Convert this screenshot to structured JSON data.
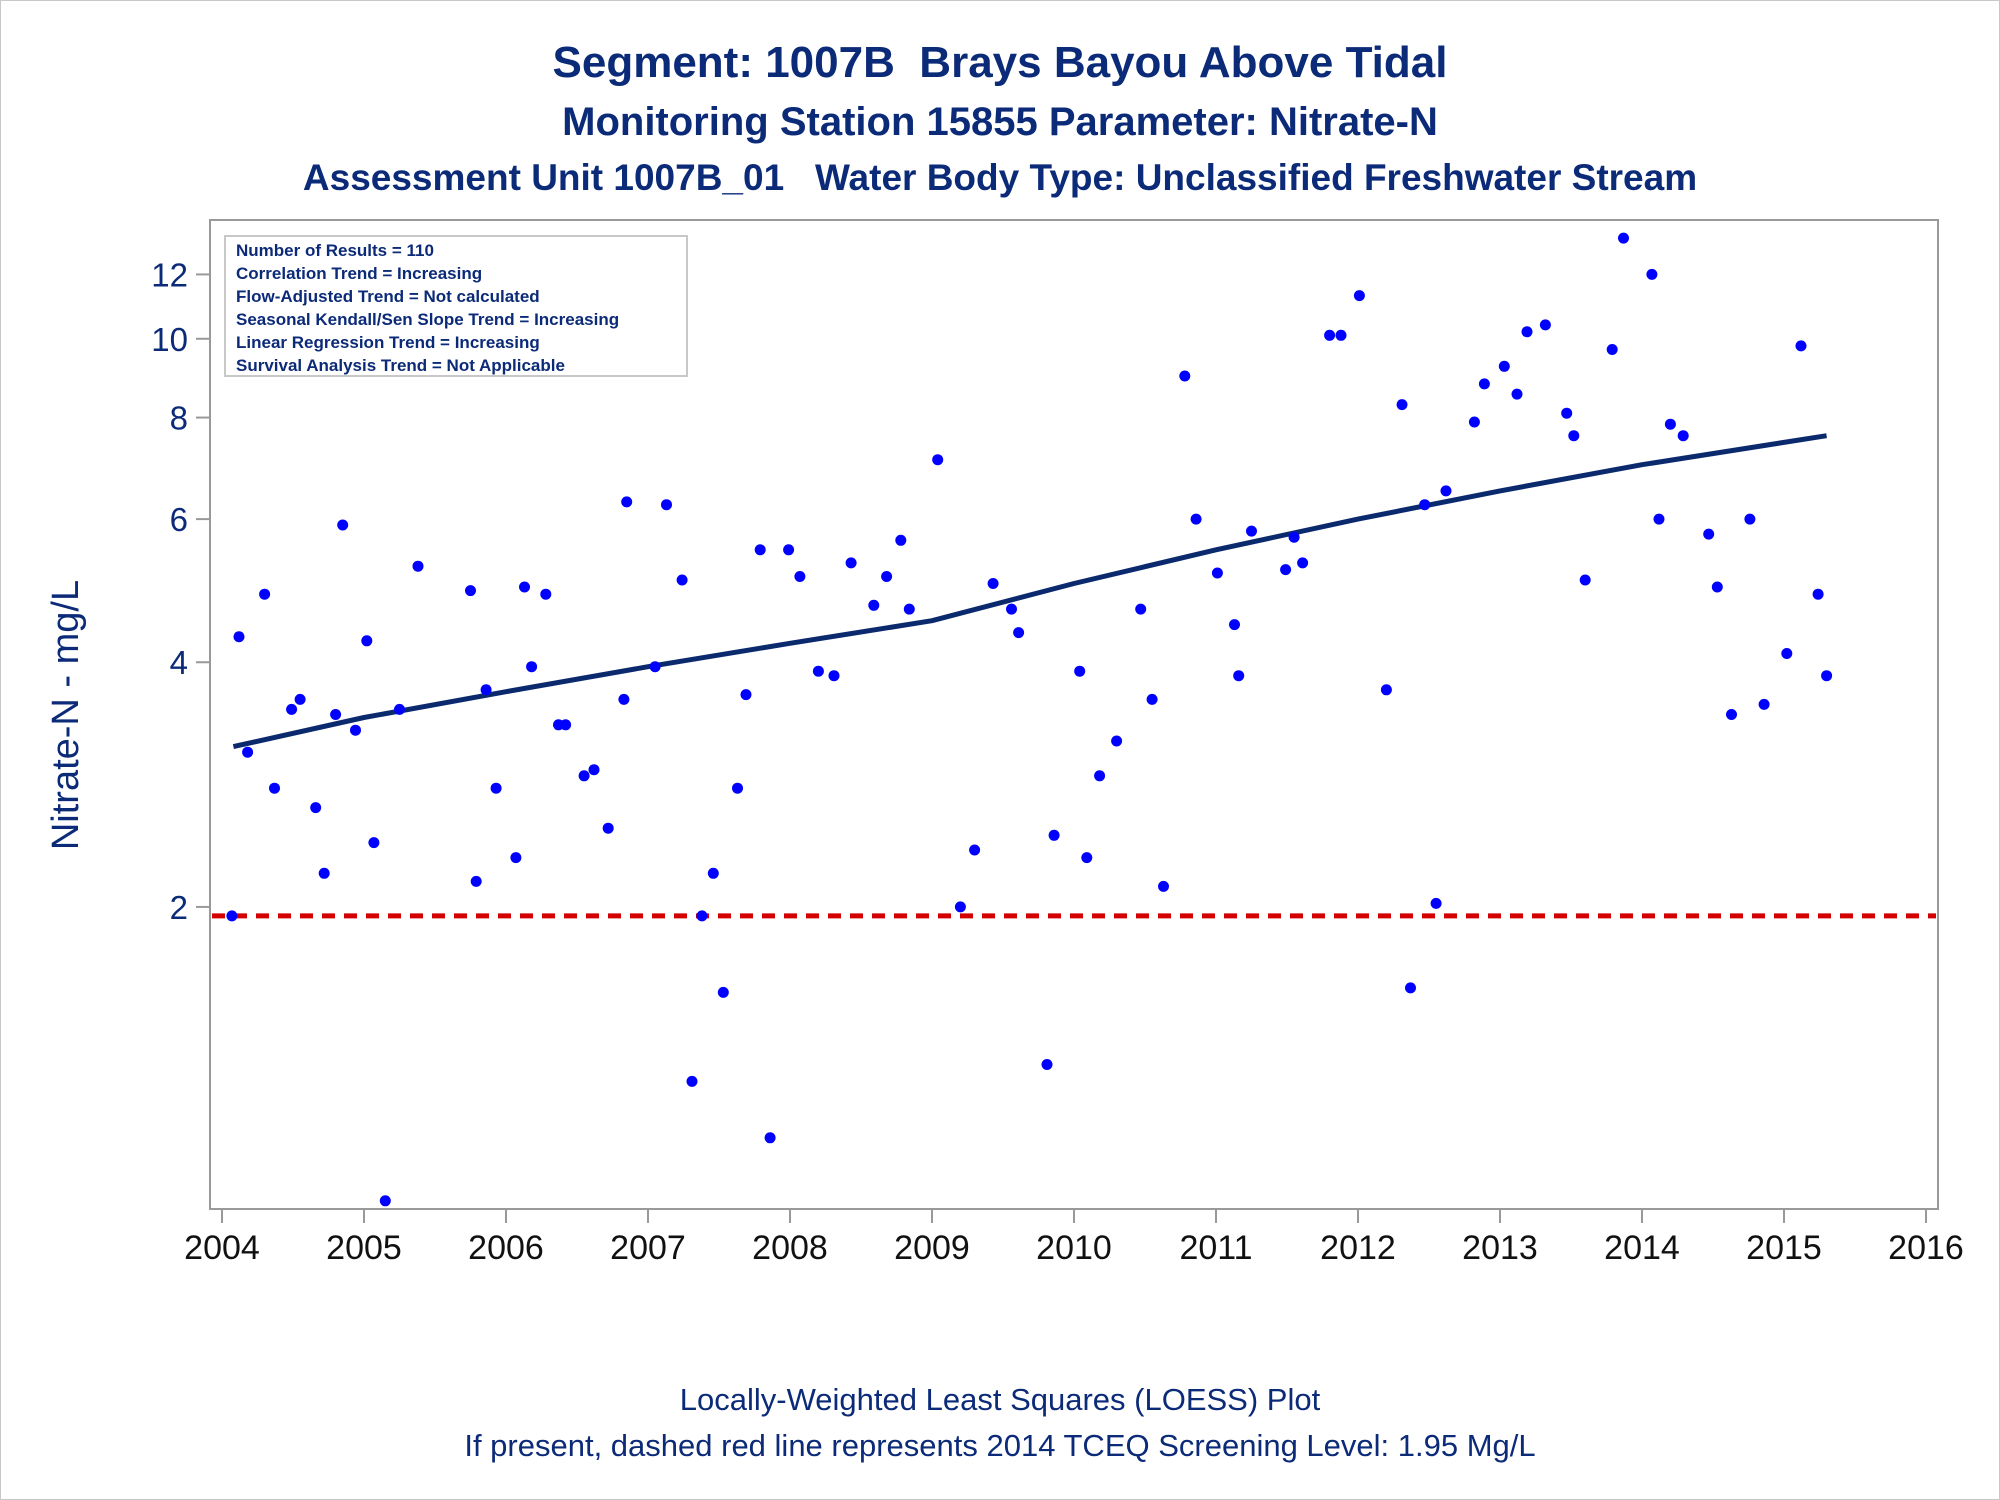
{
  "header": {
    "title": "Segment: 1007B  Brays Bayou Above Tidal",
    "subtitle": "Monitoring Station 15855 Parameter: Nitrate-N",
    "subtitle2": "Assessment Unit 1007B_01   Water Body Type: Unclassified Freshwater Stream"
  },
  "footer": {
    "line1": "Locally-Weighted Least Squares (LOESS) Plot",
    "line2": "If present, dashed red line represents 2014 TCEQ Screening Level: 1.95 Mg/L"
  },
  "colors": {
    "text": "#0b2a78",
    "points": "#0000ff",
    "trend": "#0b2a6e",
    "screening": "#d40000",
    "frame": "#999999"
  },
  "chart_data": {
    "type": "scatter",
    "ylabel": "Nitrate-N - mg/L",
    "y_scale": "log",
    "xlim": [
      2004,
      2016
    ],
    "ylim": [
      0.85,
      14
    ],
    "x_ticks": [
      2004,
      2005,
      2006,
      2007,
      2008,
      2009,
      2010,
      2011,
      2012,
      2013,
      2014,
      2015,
      2016
    ],
    "y_ticks": [
      2,
      4,
      6,
      8,
      10,
      12
    ],
    "legend_placement": "top-left",
    "stats_box": [
      "Number of Results = 110",
      "Correlation Trend = Increasing",
      "Flow-Adjusted Trend = Not calculated",
      "Seasonal Kendall/Sen Slope Trend = Increasing",
      "Linear Regression Trend = Increasing",
      "Survival Analysis Trend = Not Applicable"
    ],
    "screening_level": 1.95,
    "trend_line": {
      "x": [
        2004.08,
        2005,
        2006,
        2007,
        2008,
        2009,
        2010,
        2011,
        2012,
        2013,
        2014,
        2015.3
      ],
      "y": [
        3.15,
        3.42,
        3.68,
        3.95,
        4.22,
        4.5,
        5.0,
        5.5,
        6.0,
        6.5,
        7.0,
        7.6
      ]
    },
    "points": {
      "x": [
        2004.07,
        2004.12,
        2004.18,
        2004.3,
        2004.37,
        2004.49,
        2004.55,
        2004.66,
        2004.72,
        2004.8,
        2004.85,
        2004.94,
        2005.02,
        2005.07,
        2005.15,
        2005.25,
        2005.38,
        2005.75,
        2005.79,
        2005.86,
        2005.93,
        2006.07,
        2006.13,
        2006.18,
        2006.28,
        2006.37,
        2006.42,
        2006.55,
        2006.62,
        2006.72,
        2006.83,
        2006.85,
        2006.93,
        2007.05,
        2007.13,
        2007.24,
        2007.31,
        2007.38,
        2007.46,
        2007.53,
        2007.63,
        2007.69,
        2007.79,
        2007.86,
        2007.99,
        2008.07,
        2008.2,
        2008.31,
        2008.43,
        2008.59,
        2008.68,
        2008.78,
        2008.84,
        2009.04,
        2009.2,
        2009.3,
        2009.43,
        2009.56,
        2009.61,
        2009.81,
        2009.86,
        2010.04,
        2010.09,
        2010.18,
        2010.3,
        2010.47,
        2010.55,
        2010.63,
        2010.78,
        2010.86,
        2011.01,
        2011.13,
        2011.16,
        2011.25,
        2011.49,
        2011.55,
        2011.61,
        2011.8,
        2011.88,
        2012.01,
        2012.2,
        2012.31,
        2012.37,
        2012.47,
        2012.55,
        2012.62,
        2012.82,
        2012.89,
        2013.03,
        2013.12,
        2013.19,
        2013.32,
        2013.47,
        2013.52,
        2013.6,
        2013.79,
        2013.87,
        2014.07,
        2014.12,
        2014.2,
        2014.29,
        2014.47,
        2014.53,
        2014.63,
        2014.76,
        2014.86,
        2015.02,
        2015.12,
        2015.24,
        2015.3
      ],
      "y": [
        1.95,
        4.3,
        3.1,
        4.85,
        2.8,
        3.5,
        3.6,
        2.65,
        2.2,
        3.45,
        5.9,
        3.3,
        4.25,
        2.4,
        0.87,
        3.5,
        5.25,
        4.9,
        2.15,
        3.7,
        2.8,
        2.3,
        4.95,
        3.95,
        4.85,
        3.35,
        3.35,
        2.9,
        2.95,
        2.5,
        3.6,
        6.3,
        9.35,
        3.95,
        6.25,
        5.05,
        1.22,
        1.95,
        2.2,
        1.57,
        2.8,
        3.65,
        5.5,
        1.04,
        5.5,
        5.1,
        3.9,
        3.85,
        5.3,
        4.7,
        5.1,
        5.65,
        4.65,
        7.1,
        2.0,
        2.35,
        5.0,
        4.65,
        4.35,
        1.28,
        2.45,
        3.9,
        2.3,
        2.9,
        3.2,
        4.65,
        3.6,
        2.12,
        9.0,
        6.0,
        5.15,
        4.45,
        3.85,
        5.8,
        5.2,
        5.7,
        5.3,
        10.1,
        10.1,
        11.3,
        3.7,
        8.3,
        1.59,
        6.25,
        2.02,
        6.5,
        7.9,
        8.8,
        9.25,
        8.55,
        10.2,
        10.4,
        8.1,
        7.6,
        5.05,
        9.7,
        13.3,
        12.0,
        6.0,
        7.85,
        7.6,
        5.75,
        4.95,
        3.45,
        6.0,
        3.55,
        4.1,
        9.8,
        4.85,
        3.85
      ]
    }
  }
}
